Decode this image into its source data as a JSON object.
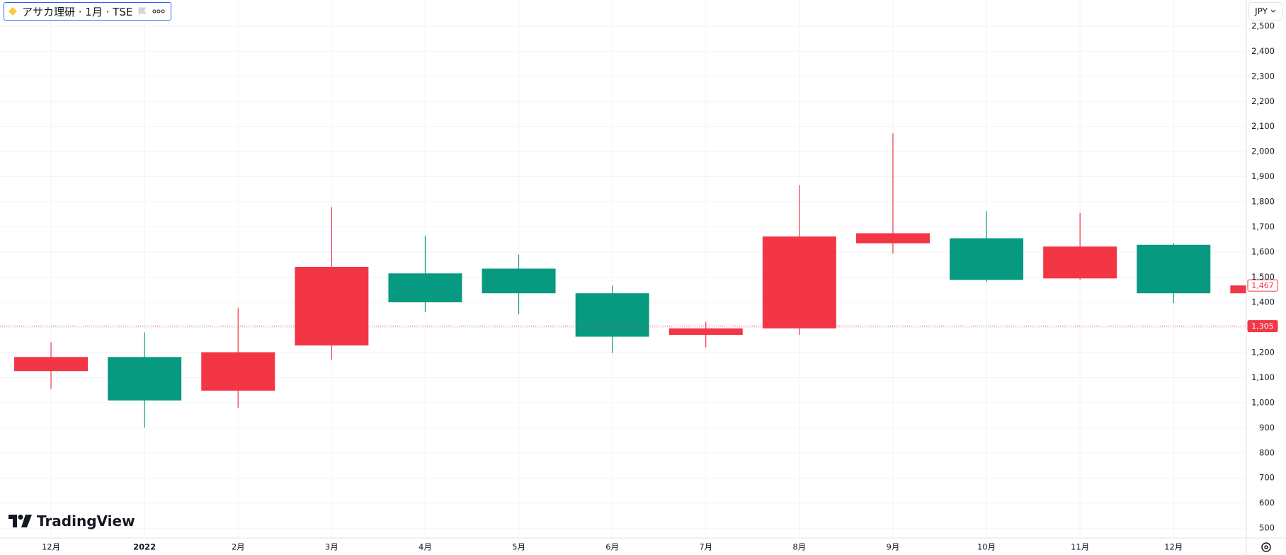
{
  "header": {
    "title": "アサカ理研 · 1月 · TSE",
    "currency": "JPY"
  },
  "watermark": "TradingView",
  "chart_data": {
    "type": "candlestick",
    "categories": [
      "12月",
      "2022",
      "2月",
      "3月",
      "4月",
      "5月",
      "6月",
      "7月",
      "8月",
      "9月",
      "10月",
      "11月",
      "12月",
      null
    ],
    "open": [
      1182,
      1009,
      1201,
      1541,
      1400,
      1436,
      1263,
      1296,
      1662,
      1675,
      1489,
      1622,
      1436,
      1467
    ],
    "high": [
      1241,
      1280,
      1378,
      1779,
      1665,
      1590,
      1466,
      1322,
      1867,
      2073,
      1763,
      1756,
      1635,
      1467
    ],
    "low": [
      1055,
      901,
      980,
      1172,
      1361,
      1352,
      1198,
      1221,
      1270,
      1593,
      1482,
      1489,
      1397,
      1436
    ],
    "close": [
      1126,
      1182,
      1048,
      1228,
      1515,
      1534,
      1436,
      1270,
      1296,
      1635,
      1655,
      1495,
      1629,
      1436
    ],
    "up_color": "#089981",
    "down_color": "#f23645",
    "ylim": [
      461,
      2604
    ],
    "yticks": [
      {
        "value": 500,
        "label": "500"
      },
      {
        "value": 600,
        "label": "600"
      },
      {
        "value": 700,
        "label": "700"
      },
      {
        "value": 800,
        "label": "800"
      },
      {
        "value": 900,
        "label": "900"
      },
      {
        "value": 1000,
        "label": "1,000"
      },
      {
        "value": 1100,
        "label": "1,100"
      },
      {
        "value": 1200,
        "label": "1,200"
      },
      {
        "value": 1300,
        "label": "1,300"
      },
      {
        "value": 1400,
        "label": "1,400"
      },
      {
        "value": 1500,
        "label": "1,500"
      },
      {
        "value": 1600,
        "label": "1,600"
      },
      {
        "value": 1700,
        "label": "1,700"
      },
      {
        "value": 1800,
        "label": "1,800"
      },
      {
        "value": 1900,
        "label": "1,900"
      },
      {
        "value": 2000,
        "label": "2,000"
      },
      {
        "value": 2100,
        "label": "2,100"
      },
      {
        "value": 2200,
        "label": "2,200"
      },
      {
        "value": 2300,
        "label": "2,300"
      },
      {
        "value": 2400,
        "label": "2,400"
      },
      {
        "value": 2500,
        "label": "2,500"
      }
    ],
    "grid": true,
    "price_lines": [
      {
        "value": 1467,
        "label": "1,467",
        "style": "outline"
      },
      {
        "value": 1305,
        "label": "1,305",
        "style": "filled"
      }
    ]
  }
}
